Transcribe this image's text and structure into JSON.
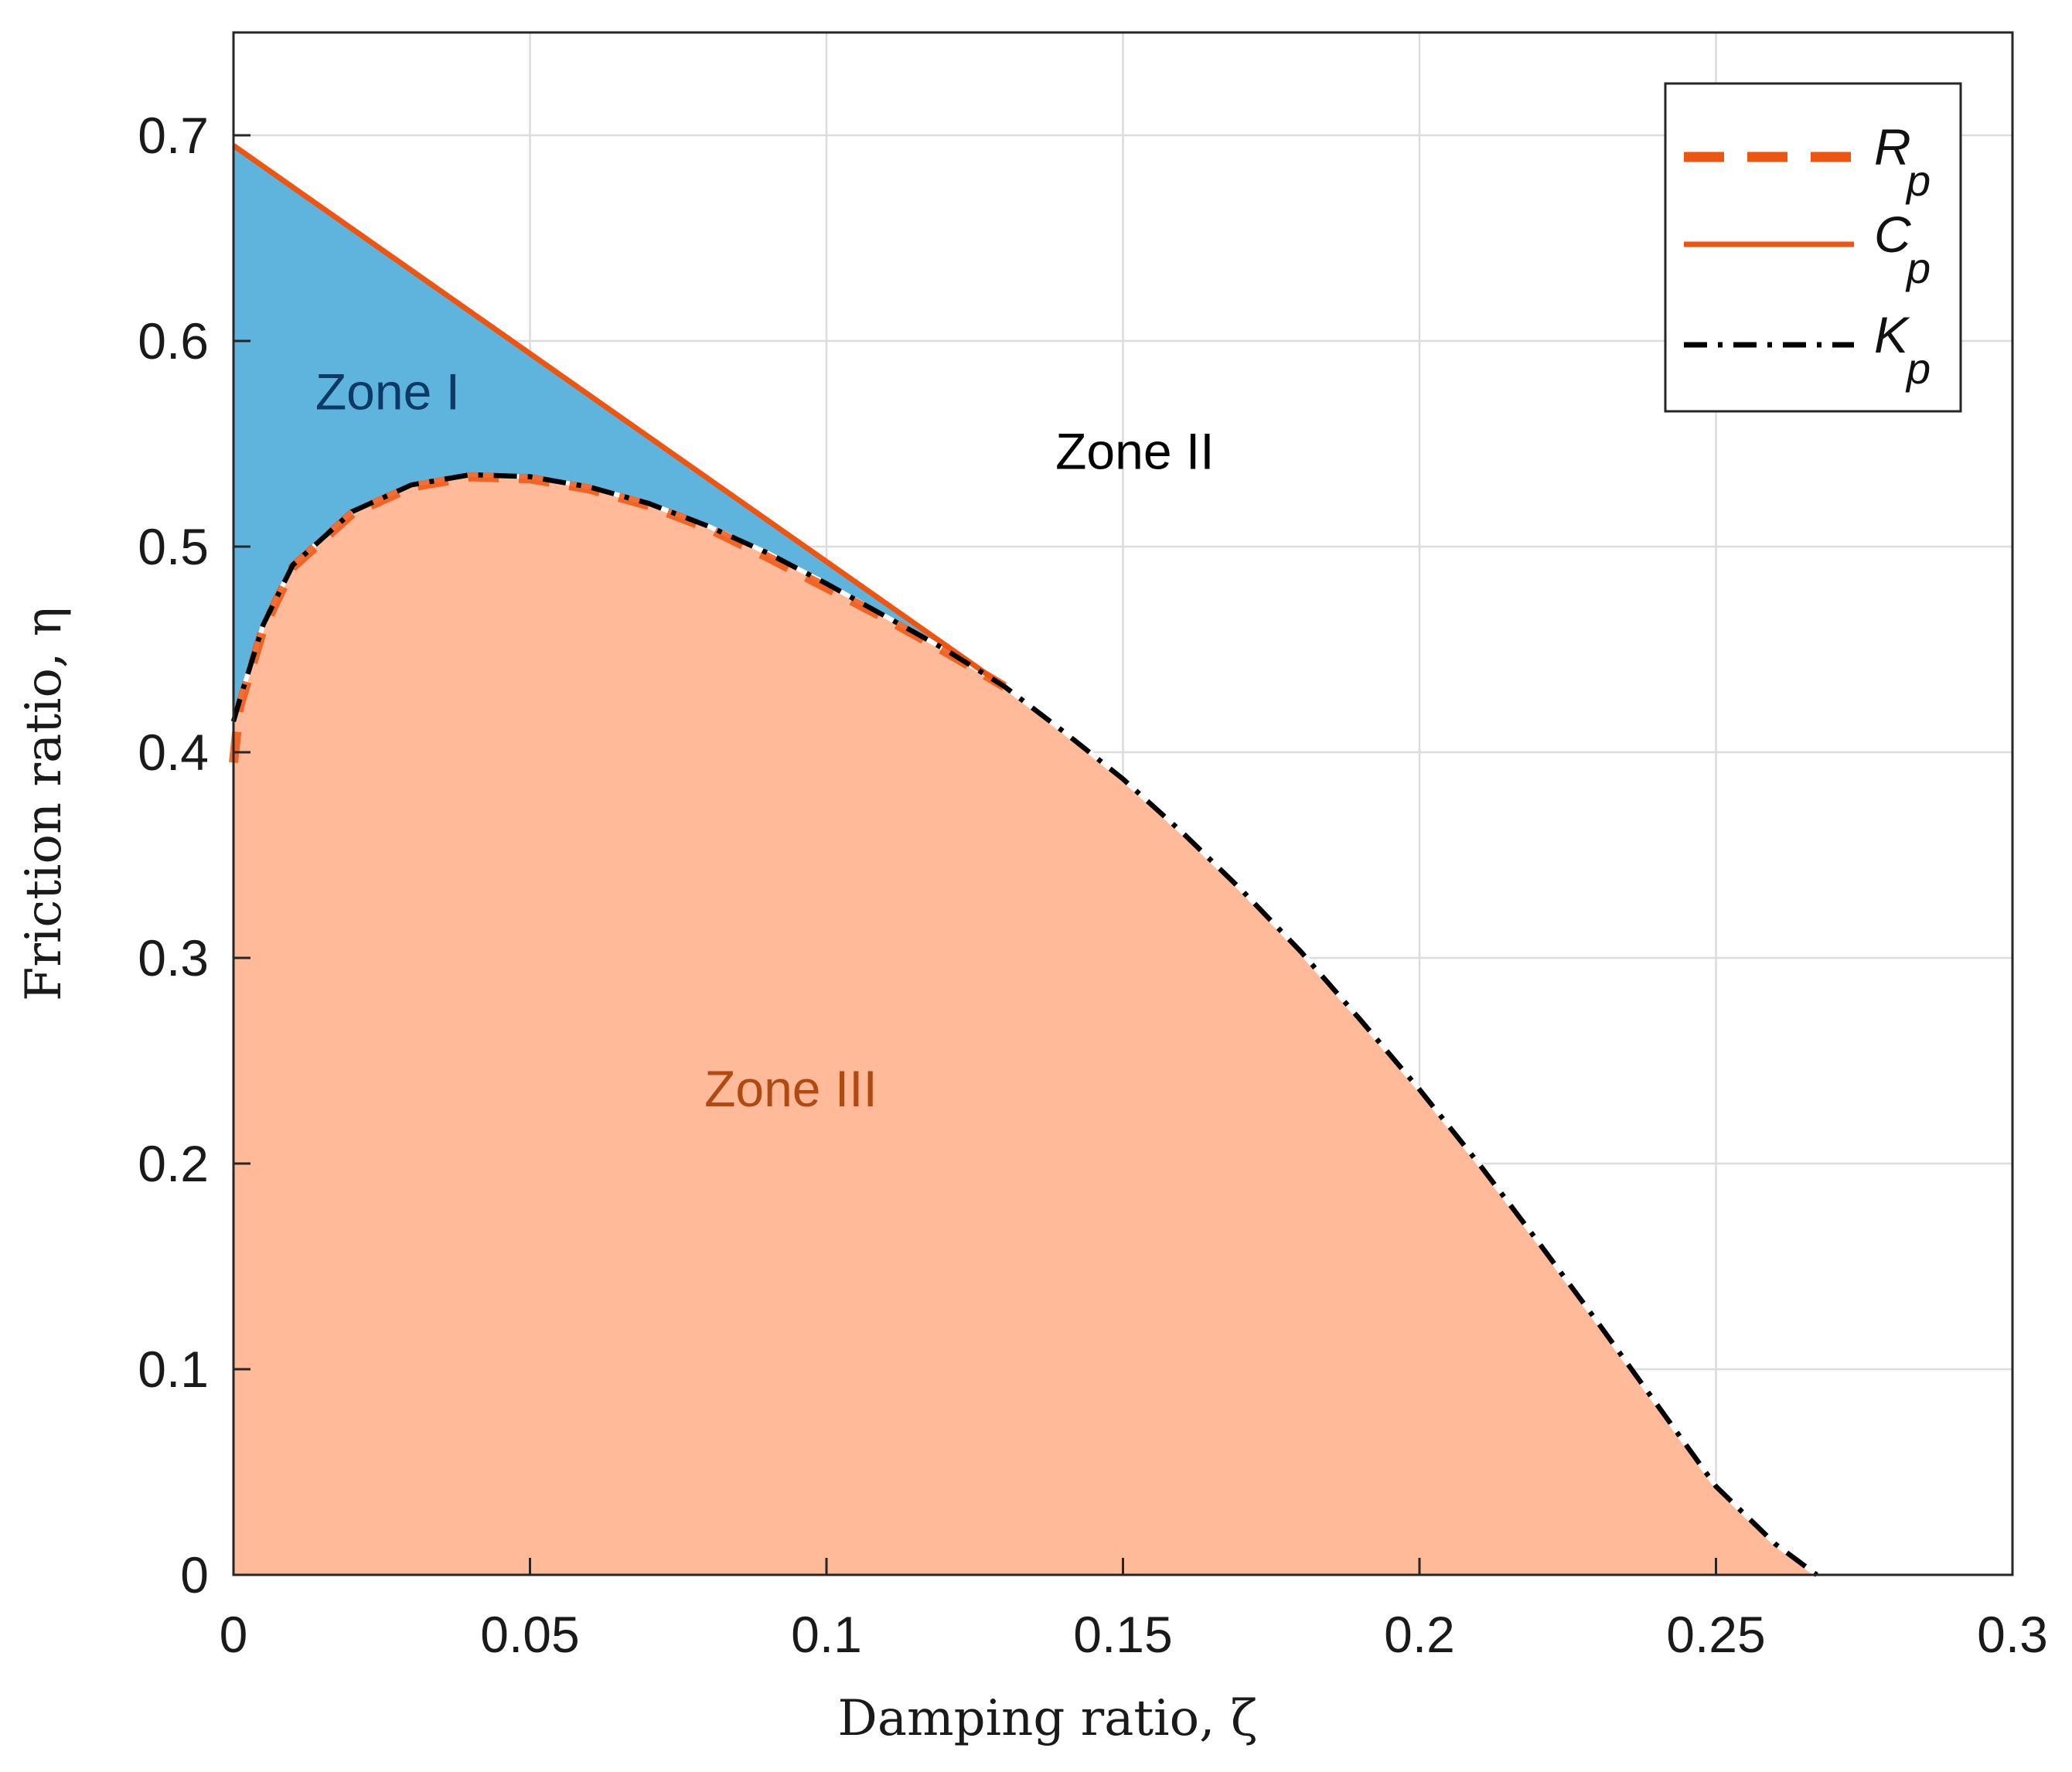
{
  "chart_data": {
    "type": "area",
    "title": "",
    "xlabel": "Damping ratio, ζ",
    "ylabel": "Friction ratio, η",
    "xlim": [
      0,
      0.3
    ],
    "ylim": [
      0,
      0.75
    ],
    "grid": true,
    "x_ticks": [
      "0",
      "0.05",
      "0.1",
      "0.15",
      "0.2",
      "0.25",
      "0.3"
    ],
    "y_ticks": [
      "0",
      "0.1",
      "0.2",
      "0.3",
      "0.4",
      "0.5",
      "0.6",
      "0.7"
    ],
    "legend_position": "top-right",
    "colors": {
      "zone_I": "#5fb4de",
      "zone_III": "#ffbb99",
      "Rp": "#ee5511",
      "Cp": "#ee5511",
      "Kp": "#000000",
      "zone_I_text": "#0b3a66",
      "zone_II_text": "#000000",
      "zone_III_text": "#b04a12"
    },
    "series": [
      {
        "name": "R",
        "subscript": "p",
        "style": "dashed",
        "color": "#ee5511",
        "x": [
          0.0,
          0.001,
          0.005,
          0.01,
          0.02,
          0.03,
          0.04,
          0.05,
          0.06,
          0.07,
          0.08,
          0.09,
          0.1,
          0.11,
          0.12,
          0.13
        ],
        "y": [
          0.395,
          0.422,
          0.46,
          0.49,
          0.516,
          0.529,
          0.534,
          0.533,
          0.528,
          0.52,
          0.509,
          0.495,
          0.48,
          0.465,
          0.449,
          0.432
        ]
      },
      {
        "name": "C",
        "subscript": "p",
        "style": "solid",
        "color": "#ee5511",
        "x": [
          0.0,
          0.13
        ],
        "y": [
          0.695,
          0.432
        ]
      },
      {
        "name": "K",
        "subscript": "p",
        "style": "dash-dot",
        "color": "#000000",
        "x": [
          0.0,
          0.001,
          0.005,
          0.01,
          0.02,
          0.03,
          0.04,
          0.05,
          0.06,
          0.07,
          0.08,
          0.09,
          0.1,
          0.11,
          0.12,
          0.13,
          0.14,
          0.15,
          0.16,
          0.17,
          0.18,
          0.19,
          0.2,
          0.21,
          0.22,
          0.23,
          0.24,
          0.25,
          0.26,
          0.267
        ],
        "y": [
          0.415,
          0.425,
          0.462,
          0.491,
          0.517,
          0.53,
          0.535,
          0.534,
          0.529,
          0.521,
          0.51,
          0.497,
          0.482,
          0.466,
          0.45,
          0.432,
          0.41,
          0.387,
          0.361,
          0.333,
          0.303,
          0.27,
          0.236,
          0.2,
          0.162,
          0.123,
          0.083,
          0.043,
          0.015,
          0.0
        ]
      }
    ],
    "annotations": [
      {
        "text": "Zone I",
        "x": 0.026,
        "y": 0.575
      },
      {
        "text": "Zone II",
        "x": 0.152,
        "y": 0.546
      },
      {
        "text": "Zone III",
        "x": 0.094,
        "y": 0.236
      }
    ]
  }
}
